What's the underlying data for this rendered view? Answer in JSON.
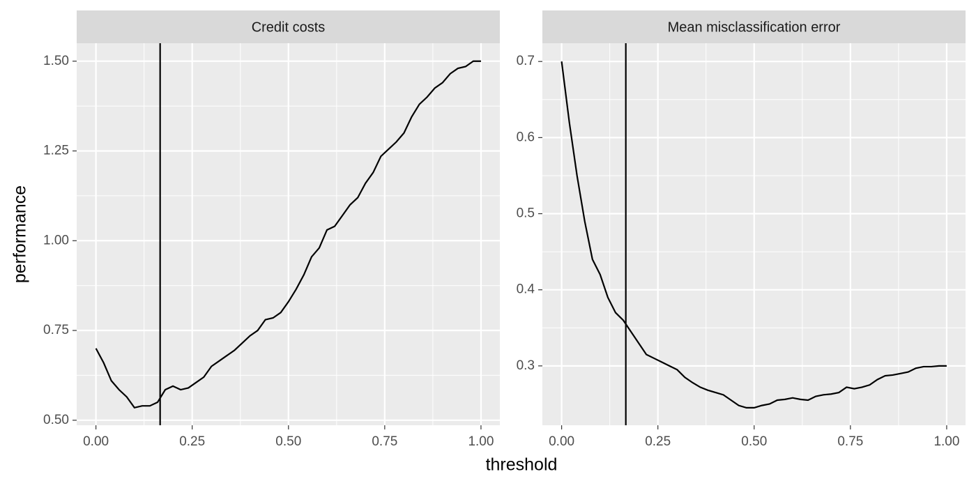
{
  "xlabel": "threshold",
  "ylabel": "performance",
  "chart_data": [
    {
      "type": "line",
      "title": "Credit costs",
      "vline": 0.1667,
      "grid": true,
      "x": [
        0,
        0.02,
        0.04,
        0.06,
        0.08,
        0.1,
        0.12,
        0.14,
        0.16,
        0.18,
        0.2,
        0.22,
        0.24,
        0.26,
        0.28,
        0.3,
        0.32,
        0.34,
        0.36,
        0.38,
        0.4,
        0.42,
        0.44,
        0.46,
        0.48,
        0.5,
        0.52,
        0.54,
        0.56,
        0.58,
        0.6,
        0.62,
        0.64,
        0.66,
        0.68,
        0.7,
        0.72,
        0.74,
        0.76,
        0.78,
        0.8,
        0.82,
        0.84,
        0.86,
        0.88,
        0.9,
        0.92,
        0.94,
        0.96,
        0.98,
        1
      ],
      "series": [
        {
          "color": "#000000",
          "values": [
            0.7,
            0.66,
            0.61,
            0.585,
            0.565,
            0.535,
            0.54,
            0.54,
            0.55,
            0.585,
            0.595,
            0.585,
            0.59,
            0.605,
            0.62,
            0.65,
            0.665,
            0.68,
            0.695,
            0.715,
            0.735,
            0.75,
            0.78,
            0.785,
            0.8,
            0.83,
            0.865,
            0.905,
            0.955,
            0.98,
            1.03,
            1.04,
            1.07,
            1.1,
            1.12,
            1.16,
            1.19,
            1.235,
            1.255,
            1.275,
            1.3,
            1.345,
            1.38,
            1.4,
            1.425,
            1.44,
            1.465,
            1.48,
            1.485,
            1.5,
            1.5
          ]
        }
      ],
      "xlim": [
        -0.05,
        1.049
      ],
      "ylim": [
        0.486,
        1.55
      ],
      "xticks": [
        {
          "value": 0,
          "label": "0.00"
        },
        {
          "value": 0.25,
          "label": "0.25"
        },
        {
          "value": 0.5,
          "label": "0.50"
        },
        {
          "value": 0.75,
          "label": "0.75"
        },
        {
          "value": 1,
          "label": "1.00"
        }
      ],
      "yticks": [
        {
          "value": 0.5,
          "label": "0.50"
        },
        {
          "value": 0.75,
          "label": "0.75"
        },
        {
          "value": 1,
          "label": "1.00"
        },
        {
          "value": 1.25,
          "label": "1.25"
        },
        {
          "value": 1.5,
          "label": "1.50"
        }
      ]
    },
    {
      "type": "line",
      "title": "Mean misclassification error",
      "vline": 0.1667,
      "grid": true,
      "x": [
        0,
        0.02,
        0.04,
        0.06,
        0.08,
        0.1,
        0.12,
        0.14,
        0.16,
        0.18,
        0.2,
        0.22,
        0.24,
        0.26,
        0.28,
        0.3,
        0.32,
        0.34,
        0.36,
        0.38,
        0.4,
        0.42,
        0.44,
        0.46,
        0.48,
        0.5,
        0.52,
        0.54,
        0.56,
        0.58,
        0.6,
        0.62,
        0.64,
        0.66,
        0.68,
        0.7,
        0.72,
        0.74,
        0.76,
        0.78,
        0.8,
        0.82,
        0.84,
        0.86,
        0.88,
        0.9,
        0.92,
        0.94,
        0.96,
        0.98,
        1
      ],
      "series": [
        {
          "color": "#000000",
          "values": [
            0.7,
            0.62,
            0.55,
            0.49,
            0.44,
            0.42,
            0.39,
            0.37,
            0.36,
            0.345,
            0.33,
            0.315,
            0.31,
            0.305,
            0.3,
            0.295,
            0.285,
            0.278,
            0.272,
            0.268,
            0.265,
            0.262,
            0.255,
            0.248,
            0.245,
            0.245,
            0.248,
            0.25,
            0.255,
            0.256,
            0.258,
            0.256,
            0.255,
            0.26,
            0.262,
            0.263,
            0.265,
            0.272,
            0.27,
            0.272,
            0.275,
            0.282,
            0.287,
            0.288,
            0.29,
            0.292,
            0.297,
            0.299,
            0.299,
            0.3,
            0.3
          ]
        }
      ],
      "xlim": [
        -0.05,
        1.049
      ],
      "ylim": [
        0.222,
        0.724
      ],
      "xticks": [
        {
          "value": 0,
          "label": "0.00"
        },
        {
          "value": 0.25,
          "label": "0.25"
        },
        {
          "value": 0.5,
          "label": "0.50"
        },
        {
          "value": 0.75,
          "label": "0.75"
        },
        {
          "value": 1,
          "label": "1.00"
        }
      ],
      "yticks": [
        0.3,
        0.4,
        0.5,
        0.6,
        0.7
      ]
    }
  ]
}
